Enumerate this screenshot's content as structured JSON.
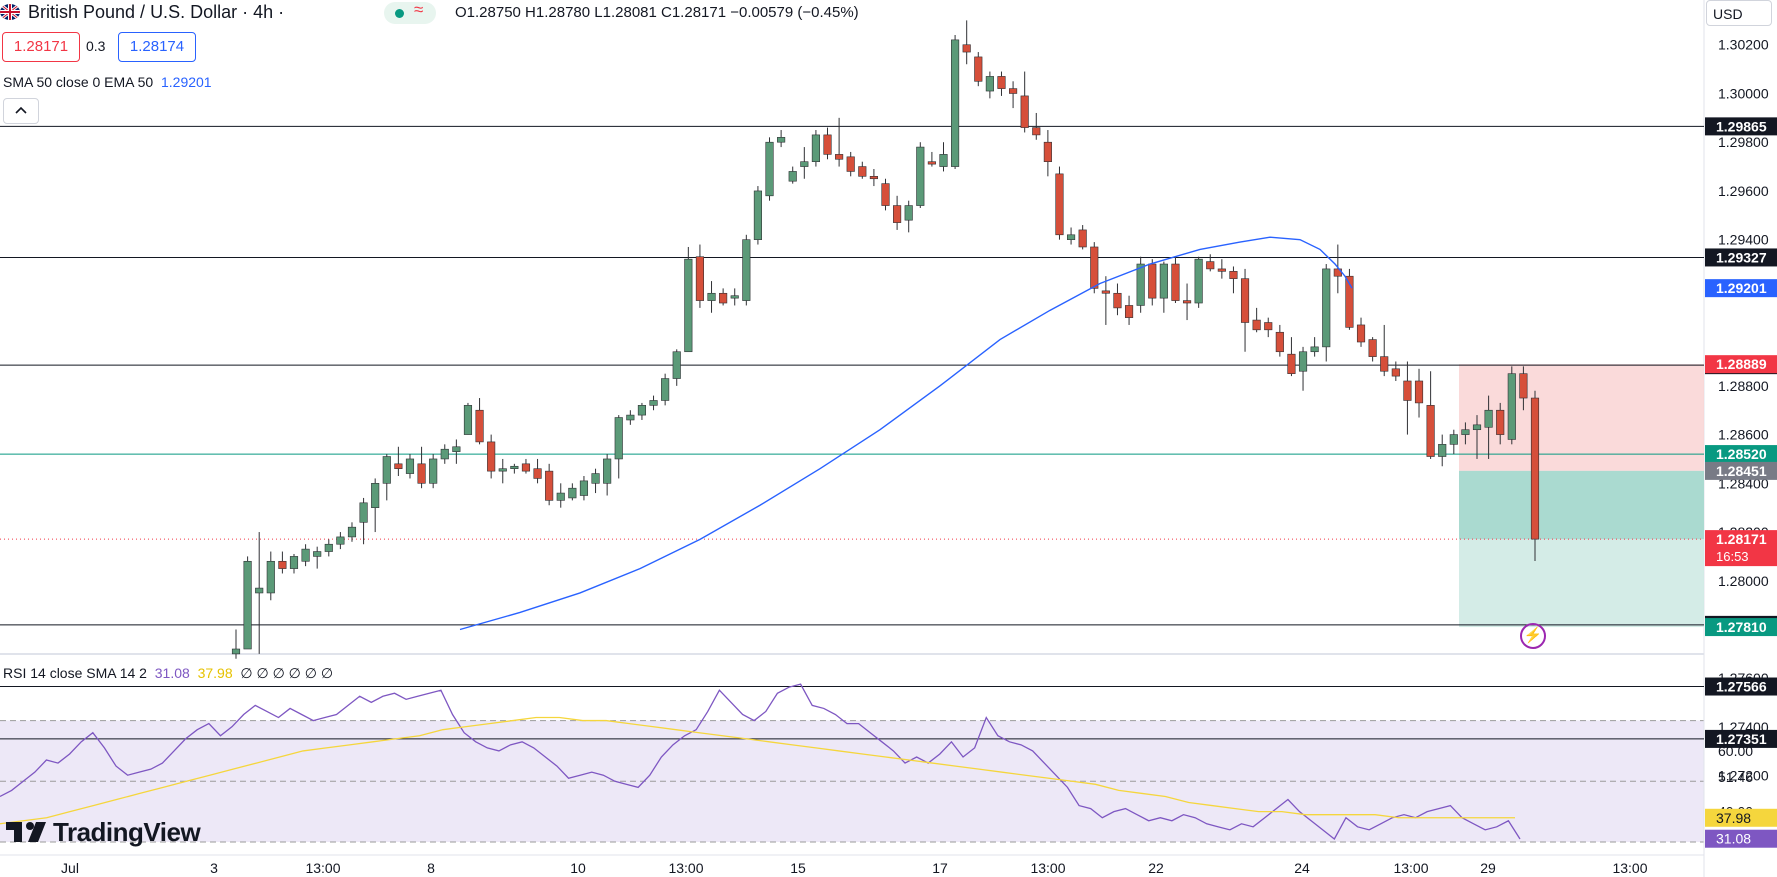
{
  "header": {
    "symbol": "British Pound / U.S. Dollar · 4h ·",
    "ohlc": "O1.28750  H1.28780  L1.28081  C1.28171  −0.00579 (−0.45%)",
    "bid": "1.28171",
    "spread": "0.3",
    "ask": "1.28174",
    "sma_label": "SMA 50 close 0 EMA 50",
    "sma_value": "1.29201"
  },
  "currency": "USD",
  "rsi": {
    "label": "RSI 14 close SMA 14 2",
    "value": "31.08",
    "sma_value": "37.98",
    "extras": "∅ ∅ ∅ ∅ ∅ ∅"
  },
  "logo_text": "TradingView",
  "colors": {
    "up": "#5b9a78",
    "down": "#d64f3a",
    "sma": "#2962ff",
    "rsi": "#7e57c2",
    "rsi_sma": "#f5d63d"
  },
  "chart_data": {
    "type": "candlestick",
    "price_ylim": [
      1.2772,
      1.3024
    ],
    "price_ticks": [
      "1.30200",
      "1.30000",
      "1.29800",
      "1.29600",
      "1.29400",
      "1.29200",
      "1.28800",
      "1.28600",
      "1.28400",
      "1.28200",
      "1.28000",
      "1.27800",
      "1.27600",
      "1.27400",
      "1.27200"
    ],
    "horizontal_levels": [
      "1.29865",
      "1.29327",
      "1.28885",
      "1.27819",
      "1.27566",
      "1.27351"
    ],
    "trade_box": {
      "stop": "1.28889",
      "entry": "1.28451",
      "target": "1.27810"
    },
    "tp_line": "1.28520",
    "last_price": "1.28171",
    "countdown": "16:53",
    "x_labels": [
      "Jul",
      "3",
      "13:00",
      "8",
      "10",
      "13:00",
      "15",
      "17",
      "13:00",
      "22",
      "24",
      "13:00",
      "29",
      "13:00"
    ],
    "candles": [
      [
        1.277,
        1.278,
        1.2768,
        1.2772
      ],
      [
        1.2772,
        1.281,
        1.2772,
        1.2808
      ],
      [
        1.2795,
        1.282,
        1.277,
        1.2797
      ],
      [
        1.2795,
        1.2812,
        1.2792,
        1.2808
      ],
      [
        1.2808,
        1.2812,
        1.2803,
        1.2805
      ],
      [
        1.2805,
        1.2811,
        1.2803,
        1.281
      ],
      [
        1.2808,
        1.2815,
        1.2806,
        1.2813
      ],
      [
        1.281,
        1.2814,
        1.2805,
        1.2812
      ],
      [
        1.2812,
        1.2817,
        1.281,
        1.2815
      ],
      [
        1.2815,
        1.282,
        1.2813,
        1.2818
      ],
      [
        1.2818,
        1.2824,
        1.2816,
        1.2822
      ],
      [
        1.2824,
        1.2834,
        1.2815,
        1.2832
      ],
      [
        1.283,
        1.2842,
        1.282,
        1.284
      ],
      [
        1.284,
        1.2852,
        1.2833,
        1.2851
      ],
      [
        1.2848,
        1.2855,
        1.2843,
        1.2846
      ],
      [
        1.2844,
        1.2852,
        1.2842,
        1.285
      ],
      [
        1.2848,
        1.2855,
        1.2838,
        1.284
      ],
      [
        1.284,
        1.2852,
        1.2838,
        1.285
      ],
      [
        1.285,
        1.2856,
        1.2848,
        1.2854
      ],
      [
        1.2853,
        1.2858,
        1.2848,
        1.2855
      ],
      [
        1.286,
        1.2873,
        1.286,
        1.2872
      ],
      [
        1.287,
        1.2875,
        1.2856,
        1.2857
      ],
      [
        1.2857,
        1.286,
        1.2842,
        1.2845
      ],
      [
        1.2845,
        1.285,
        1.284,
        1.2846
      ],
      [
        1.2846,
        1.2848,
        1.2844,
        1.2847
      ],
      [
        1.2848,
        1.285,
        1.2844,
        1.2845
      ],
      [
        1.2846,
        1.285,
        1.284,
        1.2842
      ],
      [
        1.2845,
        1.2848,
        1.2831,
        1.2833
      ],
      [
        1.2833,
        1.284,
        1.283,
        1.2836
      ],
      [
        1.2834,
        1.284,
        1.2833,
        1.2838
      ],
      [
        1.2835,
        1.2843,
        1.2833,
        1.2841
      ],
      [
        1.284,
        1.2846,
        1.2836,
        1.2844
      ],
      [
        1.284,
        1.2852,
        1.2835,
        1.285
      ],
      [
        1.285,
        1.2868,
        1.2842,
        1.2867
      ],
      [
        1.2866,
        1.287,
        1.2864,
        1.2868
      ],
      [
        1.2868,
        1.2873,
        1.2866,
        1.2872
      ],
      [
        1.2872,
        1.2876,
        1.287,
        1.2874
      ],
      [
        1.2874,
        1.2885,
        1.2872,
        1.2883
      ],
      [
        1.2883,
        1.2895,
        1.288,
        1.2894
      ],
      [
        1.2894,
        1.2937,
        1.2895,
        1.2932
      ],
      [
        1.2933,
        1.2938,
        1.2912,
        1.2915
      ],
      [
        1.2915,
        1.2923,
        1.291,
        1.2918
      ],
      [
        1.2918,
        1.292,
        1.2913,
        1.2914
      ],
      [
        1.2916,
        1.292,
        1.2913,
        1.2917
      ],
      [
        1.2915,
        1.2942,
        1.2913,
        1.294
      ],
      [
        1.294,
        1.2962,
        1.2938,
        1.296
      ],
      [
        1.2958,
        1.2982,
        1.2956,
        1.298
      ],
      [
        1.298,
        1.2985,
        1.2978,
        1.2982
      ],
      [
        1.2964,
        1.297,
        1.2963,
        1.2968
      ],
      [
        1.297,
        1.2978,
        1.2965,
        1.2972
      ],
      [
        1.2972,
        1.2985,
        1.297,
        1.2983
      ],
      [
        1.2983,
        1.2986,
        1.2973,
        1.2975
      ],
      [
        1.2975,
        1.299,
        1.297,
        1.2973
      ],
      [
        1.2974,
        1.2976,
        1.2966,
        1.2968
      ],
      [
        1.297,
        1.2972,
        1.2965,
        1.2966
      ],
      [
        1.2966,
        1.2969,
        1.2962,
        1.2965
      ],
      [
        1.2963,
        1.2965,
        1.2952,
        1.2954
      ],
      [
        1.2954,
        1.2958,
        1.2944,
        1.2947
      ],
      [
        1.2948,
        1.2956,
        1.2943,
        1.2954
      ],
      [
        1.2954,
        1.298,
        1.2953,
        1.2978
      ],
      [
        1.2972,
        1.2976,
        1.297,
        1.2971
      ],
      [
        1.297,
        1.298,
        1.2968,
        1.2975
      ],
      [
        1.297,
        1.3024,
        1.2969,
        1.3022
      ],
      [
        1.302,
        1.303,
        1.3012,
        1.3017
      ],
      [
        1.3015,
        1.3017,
        1.3003,
        1.3005
      ],
      [
        1.3001,
        1.3009,
        1.2998,
        1.3007
      ],
      [
        1.3007,
        1.3009,
        1.2999,
        1.3002
      ],
      [
        1.3002,
        1.3005,
        1.2994,
        1.3
      ],
      [
        1.2999,
        1.3009,
        1.2984,
        1.2986
      ],
      [
        1.2986,
        1.2992,
        1.2981,
        1.2983
      ],
      [
        1.298,
        1.2985,
        1.2966,
        1.2972
      ],
      [
        1.2967,
        1.297,
        1.294,
        1.2942
      ],
      [
        1.294,
        1.2945,
        1.2938,
        1.2942
      ],
      [
        1.2944,
        1.2946,
        1.2936,
        1.2937
      ],
      [
        1.2937,
        1.2939,
        1.2918,
        1.292
      ],
      [
        1.2919,
        1.2925,
        1.2905,
        1.2918
      ],
      [
        1.2918,
        1.2922,
        1.2909,
        1.2912
      ],
      [
        1.2913,
        1.2917,
        1.2905,
        1.2908
      ],
      [
        1.2913,
        1.2933,
        1.291,
        1.293
      ],
      [
        1.293,
        1.2932,
        1.2913,
        1.2916
      ],
      [
        1.2916,
        1.2931,
        1.291,
        1.293
      ],
      [
        1.293,
        1.2933,
        1.2914,
        1.2915
      ],
      [
        1.2915,
        1.2922,
        1.2907,
        1.2914
      ],
      [
        1.2914,
        1.2933,
        1.2912,
        1.2932
      ],
      [
        1.2931,
        1.2934,
        1.2927,
        1.2928
      ],
      [
        1.2928,
        1.2932,
        1.2924,
        1.2927
      ],
      [
        1.2927,
        1.2929,
        1.2918,
        1.2924
      ],
      [
        1.2924,
        1.2928,
        1.2894,
        1.2906
      ],
      [
        1.2907,
        1.2912,
        1.2902,
        1.2903
      ],
      [
        1.2906,
        1.2908,
        1.29,
        1.2903
      ],
      [
        1.2902,
        1.2905,
        1.2892,
        1.2894
      ],
      [
        1.2893,
        1.29,
        1.2884,
        1.2885
      ],
      [
        1.2886,
        1.2896,
        1.2878,
        1.2894
      ],
      [
        1.2894,
        1.29,
        1.2892,
        1.2896
      ],
      [
        1.2896,
        1.293,
        1.289,
        1.2928
      ],
      [
        1.2928,
        1.2938,
        1.2918,
        1.2925
      ],
      [
        1.2925,
        1.2928,
        1.2903,
        1.2904
      ],
      [
        1.2905,
        1.2908,
        1.2896,
        1.2898
      ],
      [
        1.2899,
        1.29,
        1.289,
        1.2892
      ],
      [
        1.2892,
        1.2905,
        1.2884,
        1.2886
      ],
      [
        1.2887,
        1.289,
        1.2882,
        1.2884
      ],
      [
        1.2882,
        1.289,
        1.286,
        1.2874
      ],
      [
        1.2882,
        1.2887,
        1.2867,
        1.2873
      ],
      [
        1.2872,
        1.2886,
        1.285,
        1.2851
      ],
      [
        1.2851,
        1.286,
        1.2847,
        1.2856
      ],
      [
        1.2856,
        1.2862,
        1.2852,
        1.286
      ],
      [
        1.286,
        1.2865,
        1.2856,
        1.2862
      ],
      [
        1.2862,
        1.2868,
        1.285,
        1.2864
      ],
      [
        1.2863,
        1.2876,
        1.285,
        1.287
      ],
      [
        1.287,
        1.2873,
        1.2856,
        1.286
      ],
      [
        1.2858,
        1.2888,
        1.2856,
        1.2885
      ],
      [
        1.2885,
        1.2888,
        1.287,
        1.2875
      ],
      [
        1.2875,
        1.2878,
        1.28081,
        1.28171
      ]
    ],
    "sma": [
      1.278,
      1.2787,
      1.2795,
      1.2805,
      1.2817,
      1.2831,
      1.2846,
      1.2862,
      1.288,
      1.2899,
      1.2911,
      1.2922,
      1.293,
      1.2936,
      1.2939,
      1.2941,
      1.294,
      1.2936,
      1.293,
      1.2925,
      1.29201
    ],
    "sma_x": [
      460,
      520,
      580,
      640,
      700,
      760,
      820,
      880,
      940,
      1000,
      1050,
      1100,
      1150,
      1200,
      1240,
      1270,
      1300,
      1320,
      1335,
      1345,
      1352
    ],
    "rsi_ylim": [
      30,
      86
    ],
    "rsi_ticks": [
      "80.00",
      "60.00",
      "51.46",
      "40.00"
    ],
    "rsi_bands": [
      70,
      30
    ],
    "rsi_values": [
      45,
      47,
      50,
      53,
      57,
      56,
      59,
      63,
      66,
      61,
      55,
      52,
      53,
      54,
      56,
      60,
      64,
      67,
      69,
      65,
      68,
      72,
      75,
      73,
      71,
      74,
      72,
      70,
      71,
      72,
      75,
      78,
      76,
      78,
      79,
      77,
      78,
      79,
      80,
      72,
      66,
      63,
      61,
      60,
      62,
      63,
      61,
      58,
      55,
      51,
      52,
      53,
      52,
      50,
      49,
      48,
      52,
      58,
      62,
      65,
      67,
      73,
      80,
      76,
      72,
      70,
      73,
      79,
      81,
      82,
      75,
      74,
      72,
      69,
      69,
      66,
      63,
      60,
      56,
      58,
      56,
      59,
      63,
      58,
      61,
      71,
      65,
      63,
      62,
      60,
      56,
      52,
      48,
      42,
      41,
      38,
      40,
      41,
      39,
      37,
      38,
      37,
      39,
      38,
      36,
      35,
      34,
      36,
      35,
      38,
      41,
      44,
      40,
      37,
      34,
      31,
      38,
      35,
      34,
      36,
      38,
      39,
      38,
      40,
      41,
      42,
      38,
      36,
      34,
      35,
      37,
      31
    ],
    "rsi_sma": [
      36,
      37,
      38,
      40,
      42,
      44,
      46,
      48,
      50,
      52,
      54,
      56,
      58,
      60,
      61,
      62,
      63,
      64,
      65,
      67,
      68,
      69,
      70,
      71,
      71,
      70,
      70,
      69,
      68,
      67,
      66,
      65,
      64,
      63,
      62,
      61,
      60,
      59,
      58,
      57,
      56,
      55,
      54,
      53,
      52,
      51,
      50,
      49,
      47,
      46,
      45,
      43,
      42,
      41,
      40,
      40,
      39,
      39,
      39,
      39,
      38,
      38,
      38,
      38,
      38,
      38
    ]
  }
}
